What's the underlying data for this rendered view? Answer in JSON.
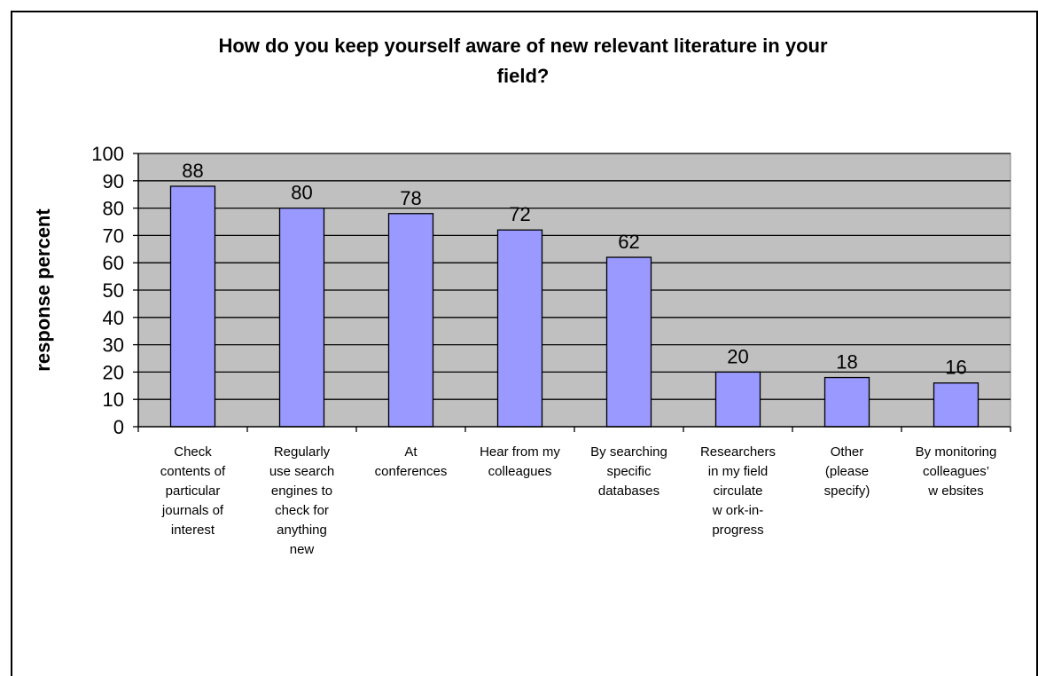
{
  "chart_data": {
    "type": "bar",
    "title": "How do you keep yourself aware of new relevant literature in your field?",
    "title_lines": [
      "How do you keep yourself aware of new relevant literature in your",
      "field?"
    ],
    "ylabel": "response percent",
    "xlabel": "",
    "ylim": [
      0,
      100
    ],
    "yticks": [
      "0",
      "10",
      "20",
      "30",
      "40",
      "50",
      "60",
      "70",
      "80",
      "90",
      "100"
    ],
    "categories": [
      "Check contents of particular journals of interest",
      "Regularly use search engines to check for anything new",
      "At conferences",
      "Hear from my colleagues",
      "By searching specific databases",
      "Researchers in my field circulate work-in-progress",
      "Other (please specify)",
      "By monitoring colleagues' websites"
    ],
    "category_lines": [
      [
        "Check",
        "contents of",
        "particular",
        "journals of",
        "interest"
      ],
      [
        "Regularly",
        "use search",
        "engines to",
        "check for",
        "anything",
        "new"
      ],
      [
        "At",
        "conferences"
      ],
      [
        "Hear from my",
        "colleagues"
      ],
      [
        "By searching",
        "specific",
        "databases"
      ],
      [
        "Researchers",
        "in my field",
        "circulate",
        "w ork-in-",
        "progress"
      ],
      [
        "Other",
        "(please",
        "specify)"
      ],
      [
        "By monitoring",
        "colleagues’",
        "w ebsites"
      ]
    ],
    "values": [
      88,
      80,
      78,
      72,
      62,
      20,
      18,
      16
    ],
    "value_labels": [
      "88",
      "80",
      "78",
      "72",
      "62",
      "20",
      "18",
      "16"
    ],
    "grid": true,
    "legend": "none",
    "colors": {
      "bar_fill": "#9999ff",
      "bar_stroke": "#000000",
      "plot_background": "#c0c0c0",
      "gridline": "#000000"
    }
  }
}
